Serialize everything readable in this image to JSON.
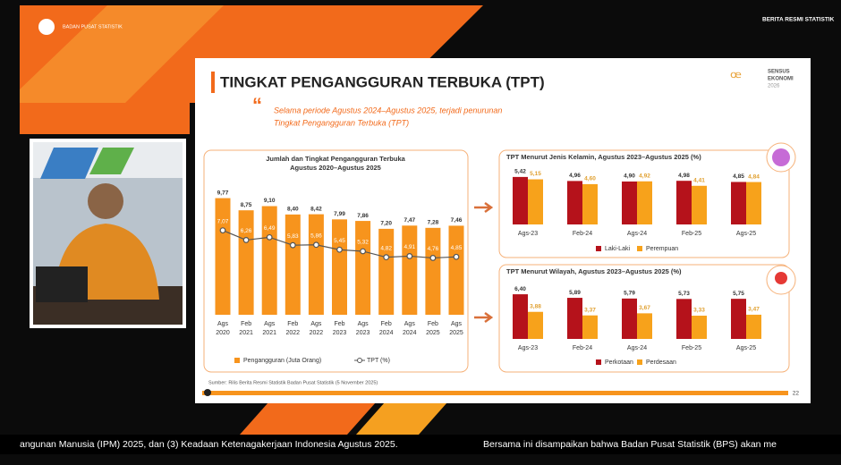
{
  "header": {
    "logo_text": "BADAN PUSAT STATISTIK",
    "program": "BERITA RESMI STATISTIK"
  },
  "slide": {
    "title": "TINGKAT PENGANGGURAN TERBUKA (TPT)",
    "quote": [
      "Selama periode Agustus 2024–Agustus 2025, terjadi penurunan",
      "Tingkat Pengangguran Terbuka (TPT)"
    ],
    "brand": [
      "SENSUS",
      "EKONOMI",
      "2026"
    ],
    "source": "Sumber: Rilis Berita Resmi Statistik Badan Pusat Statistik (5 November 2025)",
    "page_number": "22"
  },
  "ticker": [
    "angunan Manusia (IPM) 2025, dan (3) Keadaan Ketenagakerjaan Indonesia Agustus 2025.",
    "Bersama ini disampaikan bahwa Badan Pusat Statistik (BPS) akan me"
  ],
  "chart_data": [
    {
      "type": "bar",
      "title": "Jumlah dan Tingkat Pengangguran Terbuka",
      "subtitle": "Agustus 2020–Agustus 2025",
      "categories": [
        "Ags 2020",
        "Feb 2021",
        "Ags 2021",
        "Feb 2022",
        "Ags 2022",
        "Feb 2023",
        "Ags 2023",
        "Feb 2024",
        "Ags 2024",
        "Feb 2025",
        "Ags 2025"
      ],
      "series": [
        {
          "name": "Pengangguran (Juta Orang)",
          "type": "bar",
          "color": "#f7941d",
          "values": [
            9.77,
            8.75,
            9.1,
            8.4,
            8.42,
            7.99,
            7.86,
            7.2,
            7.47,
            7.28,
            7.46
          ],
          "value_labels": [
            "9,77",
            "8,75",
            "9,10",
            "8,40",
            "8,42",
            "7,99",
            "7,86",
            "7,20",
            "7,47",
            "7,28",
            "7,46"
          ]
        },
        {
          "name": "TPT (%)",
          "type": "line",
          "color": "#555555",
          "values": [
            7.07,
            6.26,
            6.49,
            5.83,
            5.86,
            5.45,
            5.32,
            4.82,
            4.91,
            4.76,
            4.85
          ],
          "value_labels": [
            "7,07",
            "6,26",
            "6,49",
            "5,83",
            "5,86",
            "5,45",
            "5,32",
            "4,82",
            "4,91",
            "4,76",
            "4,85"
          ]
        }
      ]
    },
    {
      "type": "bar",
      "title": "TPT Menurut Jenis Kelamin, Agustus 2023–Agustus 2025 (%)",
      "categories": [
        "Ags-23",
        "Feb-24",
        "Ags-24",
        "Feb-25",
        "Ags-25"
      ],
      "series": [
        {
          "name": "Laki-Laki",
          "color": "#b5121b",
          "values": [
            5.42,
            4.96,
            4.9,
            4.98,
            4.85
          ],
          "value_labels": [
            "5,42",
            "4,96",
            "4,90",
            "4,98",
            "4,85"
          ]
        },
        {
          "name": "Perempuan",
          "color": "#f7a21b",
          "values": [
            5.15,
            4.6,
            4.92,
            4.41,
            4.84
          ],
          "value_labels": [
            "5,15",
            "4,60",
            "4,92",
            "4,41",
            "4,84"
          ]
        }
      ]
    },
    {
      "type": "bar",
      "title": "TPT Menurut Wilayah, Agustus 2023–Agustus 2025 (%)",
      "categories": [
        "Ags-23",
        "Feb-24",
        "Ags-24",
        "Feb-25",
        "Ags-25"
      ],
      "series": [
        {
          "name": "Perkotaan",
          "color": "#b5121b",
          "values": [
            6.4,
            5.89,
            5.79,
            5.73,
            5.75
          ],
          "value_labels": [
            "6,40",
            "5,89",
            "5,79",
            "5,73",
            "5,75"
          ]
        },
        {
          "name": "Perdesaan",
          "color": "#f7a21b",
          "values": [
            3.88,
            3.37,
            3.67,
            3.33,
            3.47
          ],
          "value_labels": [
            "3,88",
            "3,37",
            "3,67",
            "3,33",
            "3,47"
          ]
        }
      ]
    }
  ]
}
